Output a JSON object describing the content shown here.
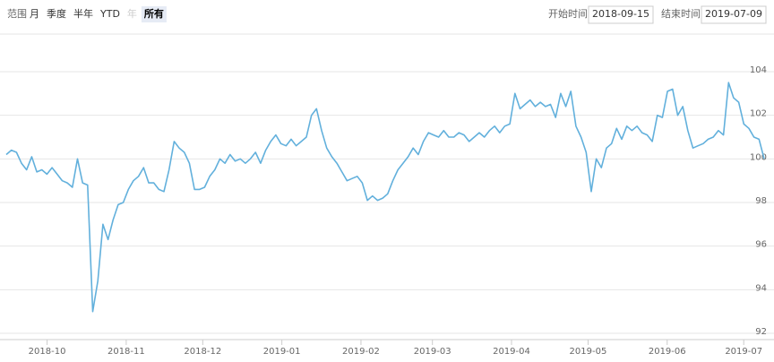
{
  "chart_data": {
    "type": "line",
    "range_label": "范围",
    "range_buttons": [
      "月",
      "季度",
      "半年",
      "YTD",
      "年",
      "所有"
    ],
    "selected_button": 5,
    "disabled_button": 4,
    "start_label": "开始时间",
    "start_date": "2018-09-15",
    "end_label": "结束时间",
    "end_date": "2019-07-09",
    "xticks": [
      "2018-10",
      "2018-11",
      "2018-12",
      "2019-01",
      "2019-02",
      "2019-03",
      "2019-04",
      "2019-05",
      "2019-06",
      "2019-07"
    ],
    "ylim": [
      92,
      104
    ],
    "yticks": [
      92,
      94,
      96,
      98,
      100,
      102,
      104
    ],
    "grid": true,
    "color": "#62b0dc",
    "values": [
      100.2,
      100.4,
      100.3,
      99.8,
      99.5,
      100.1,
      99.4,
      99.5,
      99.3,
      99.6,
      99.3,
      99.0,
      98.9,
      98.7,
      100.0,
      98.9,
      98.8,
      93.0,
      94.4,
      97.0,
      96.3,
      97.2,
      97.9,
      98.0,
      98.6,
      99.0,
      99.2,
      99.6,
      98.9,
      98.9,
      98.6,
      98.5,
      99.5,
      100.8,
      100.5,
      100.3,
      99.8,
      98.6,
      98.6,
      98.7,
      99.2,
      99.5,
      100.0,
      99.8,
      100.2,
      99.9,
      100.0,
      99.8,
      100.0,
      100.3,
      99.8,
      100.4,
      100.8,
      101.1,
      100.7,
      100.6,
      100.9,
      100.6,
      100.8,
      101.0,
      102.0,
      102.3,
      101.3,
      100.5,
      100.1,
      99.8,
      99.4,
      99.0,
      99.1,
      99.2,
      98.9,
      98.1,
      98.3,
      98.1,
      98.2,
      98.4,
      99.0,
      99.5,
      99.8,
      100.1,
      100.5,
      100.2,
      100.8,
      101.2,
      101.1,
      101.0,
      101.3,
      101.0,
      101.0,
      101.2,
      101.1,
      100.8,
      101.0,
      101.2,
      101.0,
      101.3,
      101.5,
      101.2,
      101.5,
      101.6,
      103.0,
      102.3,
      102.5,
      102.7,
      102.4,
      102.6,
      102.4,
      102.5,
      101.9,
      103.0,
      102.4,
      103.1,
      101.5,
      101.0,
      100.3,
      98.5,
      100.0,
      99.6,
      100.5,
      100.7,
      101.4,
      100.9,
      101.5,
      101.3,
      101.5,
      101.2,
      101.1,
      100.8,
      102.0,
      101.9,
      103.1,
      103.2,
      102.0,
      102.4,
      101.3,
      100.5,
      100.6,
      100.7,
      100.9,
      101.0,
      101.3,
      101.1,
      103.5,
      102.8,
      102.6,
      101.6,
      101.4,
      101.0,
      100.9,
      100.0
    ]
  }
}
